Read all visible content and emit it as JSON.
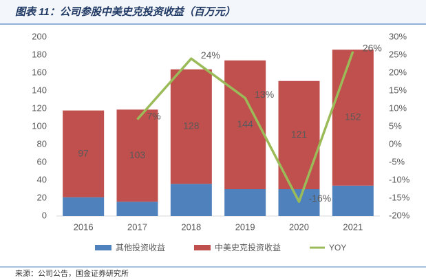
{
  "chart_data": {
    "type": "bar",
    "title": "图表 11：公司参股中美史克投资收益（百万元）",
    "source": "来源：公司公告，国金证券研究所",
    "categories": [
      "2016",
      "2017",
      "2018",
      "2019",
      "2020",
      "2021"
    ],
    "stacked": true,
    "series": [
      {
        "name": "其他投资收益",
        "color": "#4f81bd",
        "values": [
          21,
          16,
          36,
          30,
          30,
          34
        ]
      },
      {
        "name": "中美史克投资收益",
        "color": "#c0504d",
        "values": [
          97,
          103,
          128,
          144,
          121,
          152
        ],
        "value_labels": [
          "97",
          "103",
          "128",
          "144",
          "121",
          "152"
        ]
      },
      {
        "name": "YOY",
        "type": "line",
        "axis": "y2",
        "color": "#9bbb59",
        "values": [
          null,
          7,
          24,
          13,
          -16,
          26
        ],
        "value_labels": [
          null,
          "7%",
          "24%",
          "13%",
          "-16%",
          "26%"
        ]
      }
    ],
    "ylim": [
      0,
      200
    ],
    "yticks": [
      0,
      20,
      40,
      60,
      80,
      100,
      120,
      140,
      160,
      180,
      200
    ],
    "y2lim": [
      -20,
      30
    ],
    "y2ticks": [
      {
        "value": -20,
        "label": "-20%"
      },
      {
        "value": -15,
        "label": "-15%"
      },
      {
        "value": -10,
        "label": "-10%"
      },
      {
        "value": -5,
        "label": "-5%"
      },
      {
        "value": 0,
        "label": "0%"
      },
      {
        "value": 5,
        "label": "5%"
      },
      {
        "value": 10,
        "label": "10%"
      },
      {
        "value": 15,
        "label": "15%"
      },
      {
        "value": 20,
        "label": "20%"
      },
      {
        "value": 25,
        "label": "25%"
      },
      {
        "value": 30,
        "label": "30%"
      }
    ],
    "grid": false,
    "legend": "bottom"
  }
}
